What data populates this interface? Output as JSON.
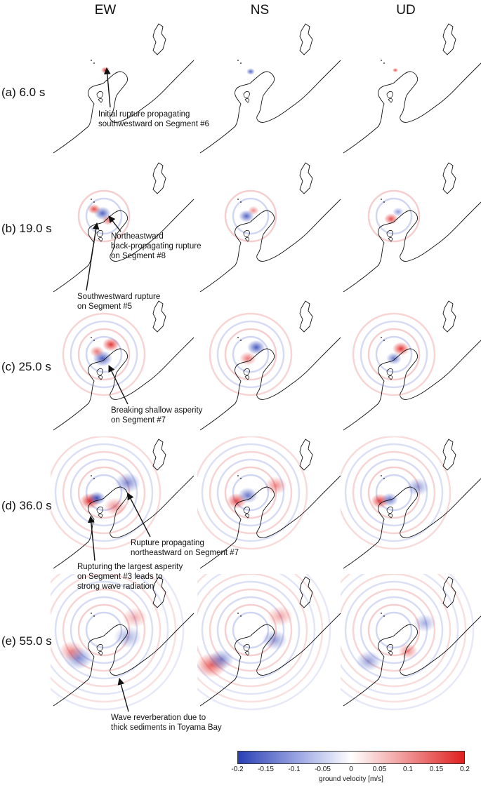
{
  "columns": [
    "EW",
    "NS",
    "UD"
  ],
  "rows": [
    {
      "label": "(a) 6.0 s"
    },
    {
      "label": "(b) 19.0 s"
    },
    {
      "label": "(c) 25.0 s"
    },
    {
      "label": "(d) 36.0 s"
    },
    {
      "label": "(e) 55.0 s"
    }
  ],
  "annotations": {
    "a": "Initial rupture propagating\nsouthwestward on Segment #6",
    "b1": "Northeastward\nback-propagating rupture\non Segment #8",
    "b2": "Southwestward rupture\non Segment #5",
    "c": "Breaking shallow asperity\non Segment #7",
    "d1": "Rupture propagating\nnortheastward on Segment #7",
    "d2": "Rupturing the largest asperity\non Segment #3 leads to\nstrong wave radiation",
    "e": "Wave reverberation due to\nthick sediments in Toyama Bay"
  },
  "colorbar": {
    "ticks": [
      "-0.2",
      "-0.15",
      "-0.1",
      "-0.05",
      "0",
      "0.05",
      "0.1",
      "0.15",
      "0.2"
    ],
    "label": "ground velocity [m/s]",
    "colors": {
      "negative": "#2a3fb5",
      "zero": "#ffffff",
      "positive": "#e02020"
    }
  }
}
